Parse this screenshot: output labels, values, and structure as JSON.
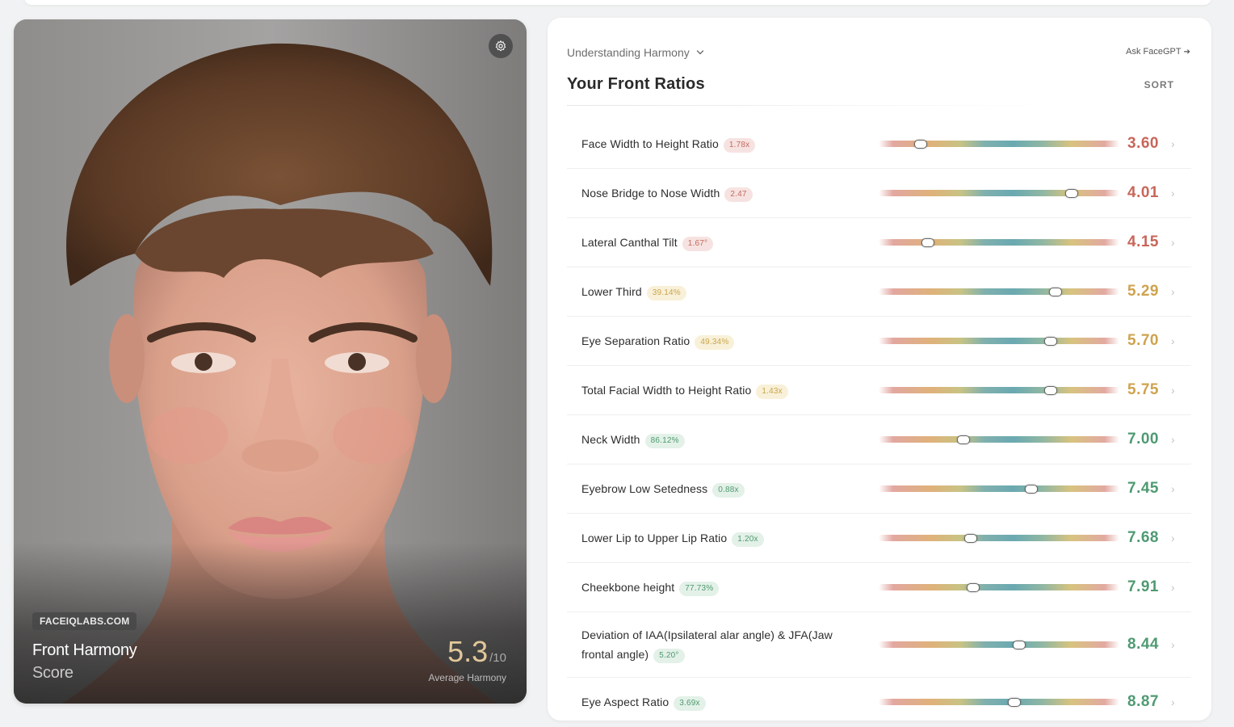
{
  "photo": {
    "site": "FACEIQLABS.COM",
    "title": "Front Harmony",
    "subtitle": "Score",
    "score": "5.3",
    "score_max": "/10",
    "score_caption": "Average Harmony",
    "settings_icon": "gear-icon"
  },
  "panel": {
    "dropdown_label": "Understanding Harmony",
    "ask_label": "Ask FaceGPT",
    "ask_arrow": "➔",
    "title": "Your Front Ratios",
    "sort_label": "SORT",
    "chevron": "›",
    "chevron_down": "⌄"
  },
  "colors": {
    "red": "#c8665a",
    "yellow": "#cfa34e",
    "green": "#4f9a72"
  },
  "ratios": [
    {
      "name": "Face Width to Height Ratio",
      "value": "1.78x",
      "score": "3.60",
      "tone": "red",
      "position": 0.17
    },
    {
      "name": "Nose Bridge to Nose Width",
      "value": "2.47",
      "score": "4.01",
      "tone": "red",
      "position": 0.8
    },
    {
      "name": "Lateral Canthal Tilt",
      "value": "1.67°",
      "score": "4.15",
      "tone": "red",
      "position": 0.2
    },
    {
      "name": "Lower Third",
      "value": "39.14%",
      "score": "5.29",
      "tone": "yellow",
      "position": 0.73
    },
    {
      "name": "Eye Separation Ratio",
      "value": "49.34%",
      "score": "5.70",
      "tone": "yellow",
      "position": 0.71
    },
    {
      "name": "Total Facial Width to Height Ratio",
      "value": "1.43x",
      "score": "5.75",
      "tone": "yellow",
      "position": 0.71
    },
    {
      "name": "Neck Width",
      "value": "86.12%",
      "score": "7.00",
      "tone": "green",
      "position": 0.35
    },
    {
      "name": "Eyebrow Low Setedness",
      "value": "0.88x",
      "score": "7.45",
      "tone": "green",
      "position": 0.63
    },
    {
      "name": "Lower Lip to Upper Lip Ratio",
      "value": "1.20x",
      "score": "7.68",
      "tone": "green",
      "position": 0.38
    },
    {
      "name": "Cheekbone height",
      "value": "77.73%",
      "score": "7.91",
      "tone": "green",
      "position": 0.39
    },
    {
      "name": "Deviation of IAA(Ipsilateral alar angle) & JFA(Jaw frontal angle)",
      "value": "5.20°",
      "score": "8.44",
      "tone": "green",
      "position": 0.58,
      "tall": true
    },
    {
      "name": "Eye Aspect Ratio",
      "value": "3.69x",
      "score": "8.87",
      "tone": "green",
      "position": 0.56
    }
  ]
}
